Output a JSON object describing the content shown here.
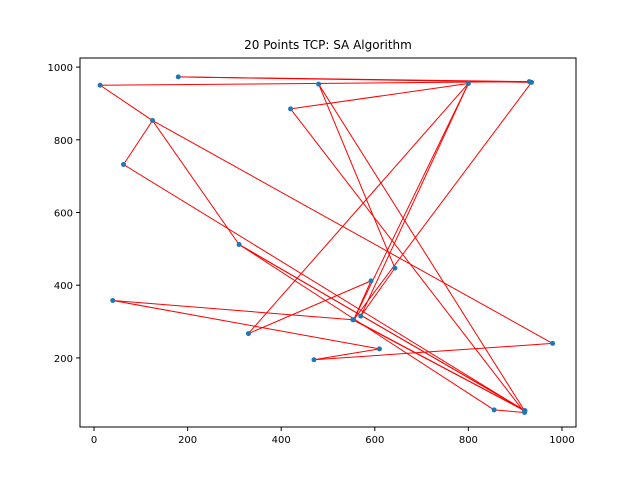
{
  "chart_data": {
    "type": "line",
    "title": "20 Points TCP: SA Algorithm",
    "xlabel": "",
    "ylabel": "",
    "xlim": [
      -30,
      1030
    ],
    "ylim": [
      10,
      1025
    ],
    "xticks": [
      0,
      200,
      400,
      600,
      800,
      1000
    ],
    "yticks": [
      200,
      400,
      600,
      800,
      1000
    ],
    "grid": false,
    "line_color": "#ff0000",
    "marker_color": "#1f77b4",
    "tour": [
      [
        13,
        950
      ],
      [
        125,
        853
      ],
      [
        310,
        512
      ],
      [
        921,
        55
      ],
      [
        310,
        512
      ],
      [
        855,
        57
      ],
      [
        920,
        50
      ],
      [
        420,
        885
      ],
      [
        800,
        955
      ],
      [
        330,
        267
      ],
      [
        592,
        412
      ],
      [
        555,
        305
      ],
      [
        920,
        55
      ],
      [
        63,
        732
      ],
      [
        125,
        853
      ],
      [
        980,
        240
      ],
      [
        470,
        195
      ],
      [
        610,
        225
      ],
      [
        40,
        358
      ],
      [
        553,
        305
      ],
      [
        920,
        55
      ],
      [
        480,
        953
      ],
      [
        643,
        447
      ],
      [
        570,
        315
      ],
      [
        800,
        955
      ],
      [
        555,
        305
      ],
      [
        935,
        958
      ],
      [
        180,
        973
      ],
      [
        930,
        960
      ],
      [
        13,
        950
      ]
    ]
  }
}
